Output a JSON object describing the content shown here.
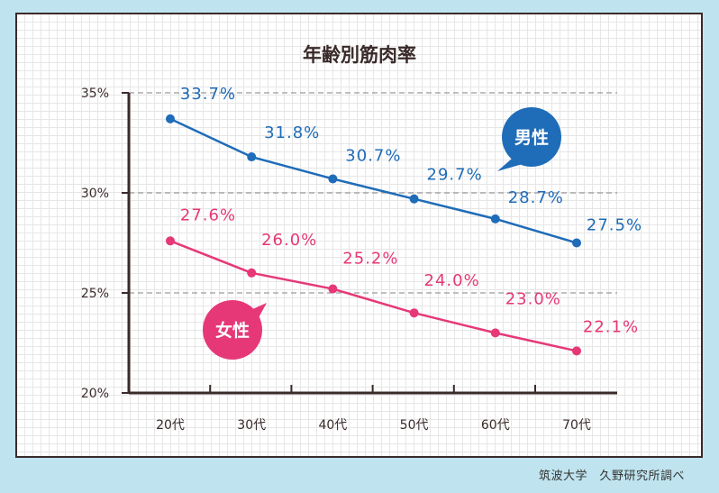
{
  "chart_data": {
    "type": "line",
    "title": "年齢別筋肉率",
    "categories": [
      "20代",
      "30代",
      "40代",
      "50代",
      "60代",
      "70代"
    ],
    "ylim": [
      20,
      35
    ],
    "yticks": [
      "20%",
      "25%",
      "30%",
      "35%"
    ],
    "ytick_values": [
      20,
      25,
      30,
      35
    ],
    "grid": true,
    "series": [
      {
        "name": "男性",
        "color": "#1f6cb8",
        "values": [
          33.7,
          31.8,
          30.7,
          29.7,
          28.7,
          27.5
        ],
        "labels": [
          "33.7%",
          "31.8%",
          "30.7%",
          "29.7%",
          "28.7%",
          "27.5%"
        ]
      },
      {
        "name": "女性",
        "color": "#e63877",
        "values": [
          27.6,
          26.0,
          25.2,
          24.0,
          23.0,
          22.1
        ],
        "labels": [
          "27.6%",
          "26.0%",
          "25.2%",
          "24.0%",
          "23.0%",
          "22.1%"
        ]
      }
    ]
  },
  "source": "筑波大学　久野研究所調べ"
}
